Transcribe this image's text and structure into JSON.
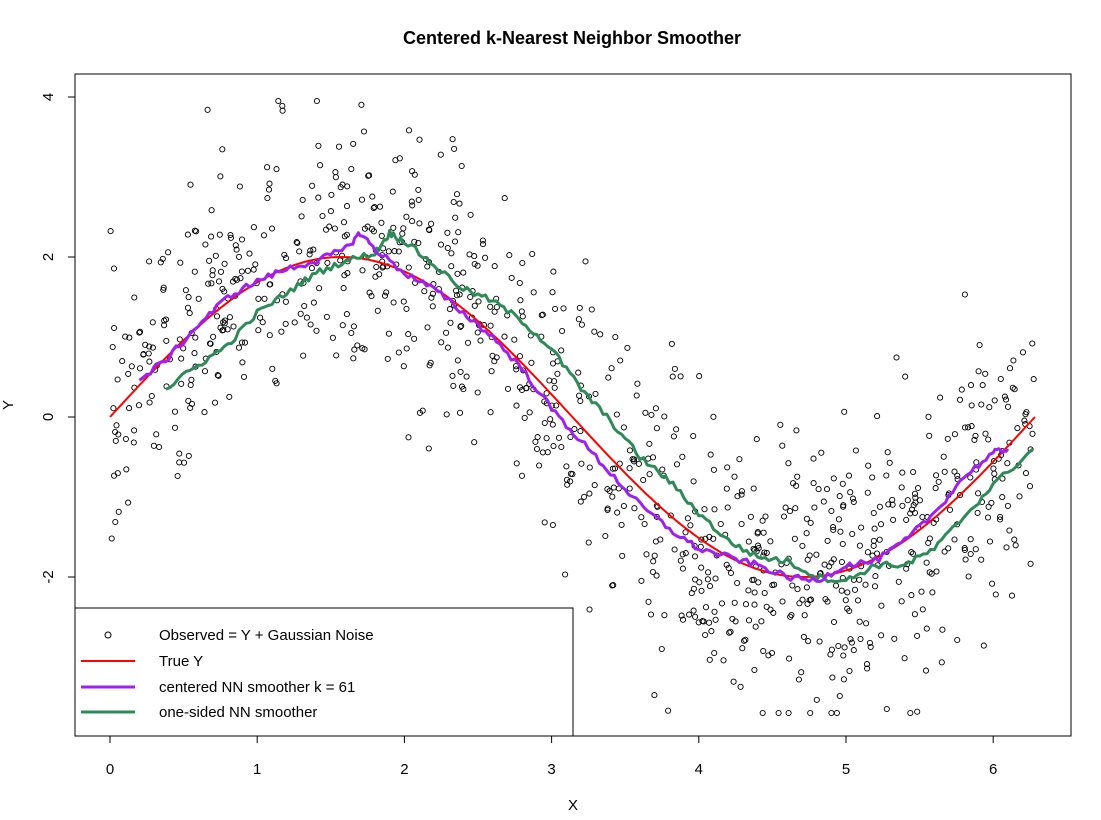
{
  "chart_data": {
    "type": "scatter",
    "title": "Centered k-Nearest Neighbor Smoother",
    "xlabel": "X",
    "ylabel": "Y",
    "xlim": [
      -0.25,
      6.53
    ],
    "ylim": [
      -3.95,
      4.2
    ],
    "x_ticks": [
      0,
      1,
      2,
      3,
      4,
      5,
      6
    ],
    "y_ticks": [
      -2,
      0,
      2,
      4
    ],
    "grid": false,
    "legend_position": "bottom-left",
    "colors": {
      "observed": "#000000",
      "true_y": "#ff0000",
      "centered": "#a020f0",
      "one_sided": "#2e8b57"
    },
    "legend": [
      {
        "label": "Observed = Y + Gaussian Noise",
        "symbol": "circle"
      },
      {
        "label": "True Y",
        "symbol": "line",
        "color": "#ff0000"
      },
      {
        "label": "centered NN smoother k = 61",
        "symbol": "line",
        "color": "#a020f0"
      },
      {
        "label": "one-sided NN smoother",
        "symbol": "line",
        "color": "#2e8b57"
      }
    ],
    "series": [
      {
        "name": "Observed = Y + Gaussian Noise",
        "kind": "points",
        "n": 1000,
        "x_range": [
          0,
          6.28
        ],
        "description": "y = sin(x)*2 with Gaussian noise sd≈0.85"
      },
      {
        "name": "True Y",
        "kind": "line",
        "function": "2*sin(x)",
        "x_range": [
          0,
          6.2832
        ]
      },
      {
        "name": "centered NN smoother k = 61",
        "kind": "line",
        "x": [
          0.2,
          0.4,
          0.6,
          0.8,
          1.0,
          1.2,
          1.4,
          1.6,
          1.7,
          1.8,
          2.0,
          2.2,
          2.4,
          2.6,
          2.8,
          3.0,
          3.2,
          3.4,
          3.6,
          3.8,
          4.0,
          4.2,
          4.4,
          4.6,
          4.8,
          5.0,
          5.2,
          5.4,
          5.6,
          5.8,
          6.0,
          6.1
        ],
        "y": [
          0.45,
          0.75,
          1.15,
          1.5,
          1.7,
          1.85,
          1.95,
          2.1,
          2.3,
          2.1,
          1.8,
          1.6,
          1.3,
          1.0,
          0.6,
          0.1,
          -0.3,
          -0.7,
          -1.1,
          -1.4,
          -1.65,
          -1.75,
          -1.85,
          -2.0,
          -2.05,
          -1.85,
          -1.8,
          -1.55,
          -1.2,
          -0.75,
          -0.45,
          -0.4
        ]
      },
      {
        "name": "one-sided NN smoother",
        "kind": "line",
        "x": [
          0.38,
          0.6,
          0.8,
          1.0,
          1.2,
          1.4,
          1.6,
          1.8,
          1.9,
          2.0,
          2.2,
          2.4,
          2.6,
          2.8,
          3.0,
          3.2,
          3.4,
          3.6,
          3.8,
          4.0,
          4.2,
          4.4,
          4.6,
          4.8,
          5.0,
          5.2,
          5.4,
          5.6,
          5.8,
          6.0,
          6.27
        ],
        "y": [
          0.35,
          0.65,
          0.9,
          1.3,
          1.55,
          1.8,
          1.95,
          2.05,
          2.3,
          2.2,
          1.9,
          1.6,
          1.45,
          1.2,
          0.85,
          0.35,
          -0.05,
          -0.5,
          -0.8,
          -1.2,
          -1.55,
          -1.75,
          -1.8,
          -2.0,
          -2.05,
          -1.85,
          -1.85,
          -1.65,
          -1.25,
          -0.85,
          -0.4
        ]
      }
    ]
  }
}
